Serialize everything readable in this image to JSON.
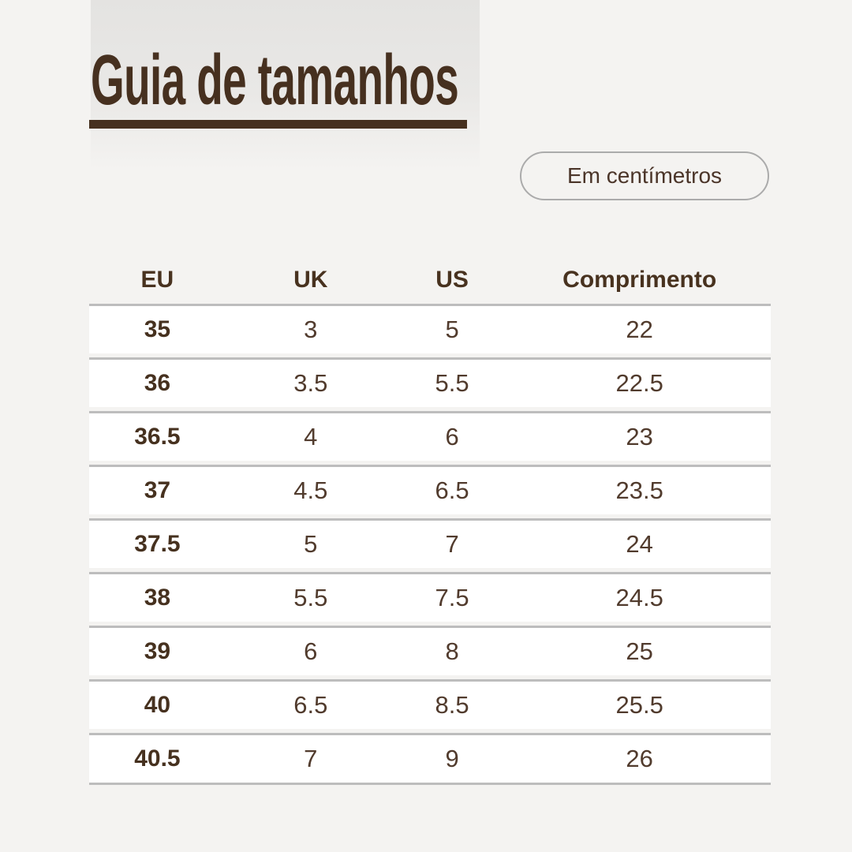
{
  "title": {
    "text": "Guia de tamanhos"
  },
  "unit_pill": {
    "label": "Em centímetros"
  },
  "table": {
    "columns": [
      "EU",
      "UK",
      "US",
      "Comprimento"
    ],
    "rows": [
      {
        "eu": "35",
        "uk": "3",
        "us": "5",
        "comprimento": "22"
      },
      {
        "eu": "36",
        "uk": "3.5",
        "us": "5.5",
        "comprimento": "22.5"
      },
      {
        "eu": "36.5",
        "uk": "4",
        "us": "6",
        "comprimento": "23"
      },
      {
        "eu": "37",
        "uk": "4.5",
        "us": "6.5",
        "comprimento": "23.5"
      },
      {
        "eu": "37.5",
        "uk": "5",
        "us": "7",
        "comprimento": "24"
      },
      {
        "eu": "38",
        "uk": "5.5",
        "us": "7.5",
        "comprimento": "24.5"
      },
      {
        "eu": "39",
        "uk": "6",
        "us": "8",
        "comprimento": "25"
      },
      {
        "eu": "40",
        "uk": "6.5",
        "us": "8.5",
        "comprimento": "25.5"
      },
      {
        "eu": "40.5",
        "uk": "7",
        "us": "9",
        "comprimento": "26"
      }
    ]
  },
  "colors": {
    "accent_brown": "#46301f",
    "data_text_brown": "#513b2d",
    "row_border_gray": "#bdbdbd",
    "pill_border_gray": "#ababab",
    "page_background": "#f4f3f1",
    "row_background": "#ffffff",
    "panel_gradient_top": "#e4e3e1"
  }
}
